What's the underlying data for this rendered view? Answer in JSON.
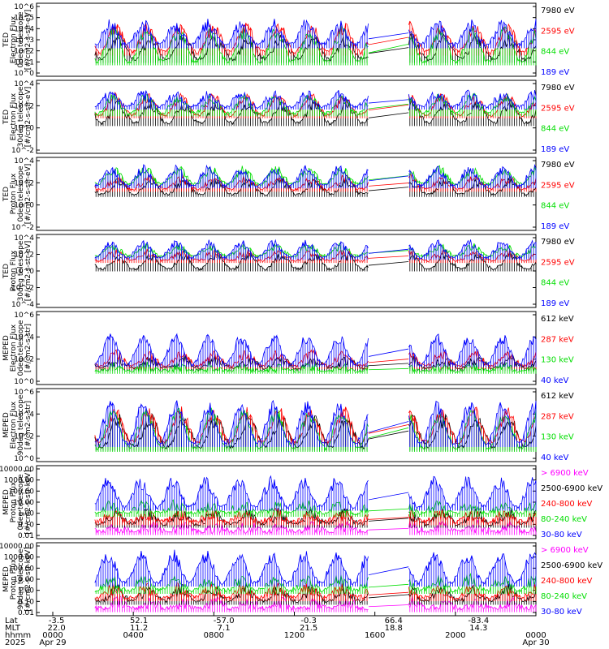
{
  "chart_data": {
    "type": "line",
    "panels": [
      {
        "ylabel": [
          "TED",
          "Electron Flux",
          "0deg telescope",
          "[#/cm2-s-str-eV]"
        ],
        "yticks": [
          "10^6",
          "10^5",
          "10^4",
          "10^3",
          "10^2",
          "10^1",
          "10^0"
        ],
        "log": [
          0,
          6
        ],
        "series": [
          {
            "name": "7980 eV",
            "color": "#000000",
            "base": 1.4,
            "amp": 1.6
          },
          {
            "name": "2595 eV",
            "color": "#ff0000",
            "base": 2.0,
            "amp": 2.0
          },
          {
            "name": "844 eV",
            "color": "#00dd00",
            "base": 1.2,
            "amp": 2.4
          },
          {
            "name": "189 eV",
            "color": "#0000ff",
            "base": 2.6,
            "amp": 1.6
          }
        ]
      },
      {
        "ylabel": [
          "TED",
          "Electron Flux",
          "30deg telescope",
          "[#/cm2-s-str-eV]"
        ],
        "yticks": [
          "10^4",
          "10^2",
          "10^0",
          "10^-2"
        ],
        "log": [
          -2.5,
          5
        ],
        "series": [
          {
            "name": "7980 eV",
            "color": "#000000",
            "base": 0.6,
            "amp": 1.8
          },
          {
            "name": "2595 eV",
            "color": "#ff0000",
            "base": 1.4,
            "amp": 1.8
          },
          {
            "name": "844 eV",
            "color": "#00dd00",
            "base": 1.6,
            "amp": 1.6
          },
          {
            "name": "189 eV",
            "color": "#0000ff",
            "base": 2.3,
            "amp": 1.2
          }
        ]
      },
      {
        "ylabel": [
          "TED",
          "Proton Flux",
          "0deg telescope",
          "[#/cm2-s-str-eV]"
        ],
        "yticks": [
          "10^4",
          "10^2",
          "10^0",
          "10^-2"
        ],
        "log": [
          -3,
          5.5
        ],
        "series": [
          {
            "name": "7980 eV",
            "color": "#000000",
            "base": 1.2,
            "amp": 1.4
          },
          {
            "name": "2595 eV",
            "color": "#ff0000",
            "base": 1.8,
            "amp": 1.2
          },
          {
            "name": "844 eV",
            "color": "#00dd00",
            "base": 2.4,
            "amp": 1.6
          },
          {
            "name": "189 eV",
            "color": "#0000ff",
            "base": 2.2,
            "amp": 1.9
          }
        ]
      },
      {
        "ylabel": [
          "TED",
          "Proton Flux",
          "30deg telescope",
          "[#/cm2-s-str-eV]"
        ],
        "yticks": [
          "10^4",
          "10^2",
          "10^0",
          "10^-2",
          "10^-4"
        ],
        "log": [
          -4.5,
          5
        ],
        "series": [
          {
            "name": "7980 eV",
            "color": "#000000",
            "base": 0.5,
            "amp": 1.6
          },
          {
            "name": "2595 eV",
            "color": "#ff0000",
            "base": 1.6,
            "amp": 1.0
          },
          {
            "name": "844 eV",
            "color": "#00dd00",
            "base": 2.2,
            "amp": 1.2
          },
          {
            "name": "189 eV",
            "color": "#0000ff",
            "base": 2.0,
            "amp": 1.8
          }
        ]
      },
      {
        "ylabel": [
          "MEPED",
          "Electron Flux",
          "0deg telescope",
          "[#/cm2-s-str]"
        ],
        "yticks": [
          "10^6",
          "10^4",
          "10^2",
          "10^0"
        ],
        "log": [
          -0.5,
          7
        ],
        "series": [
          {
            "name": "612 keV",
            "color": "#000000",
            "base": 1.2,
            "amp": 0.8
          },
          {
            "name": "287 keV",
            "color": "#ff0000",
            "base": 1.4,
            "amp": 1.2
          },
          {
            "name": "130 keV",
            "color": "#00dd00",
            "base": 0.9,
            "amp": 0.4
          },
          {
            "name": "40 keV",
            "color": "#0000ff",
            "base": 1.6,
            "amp": 2.6
          }
        ]
      },
      {
        "ylabel": [
          "MEPED",
          "Electron Flux",
          "90deg telescope",
          "[#/cm2-s-str]"
        ],
        "yticks": [
          "10^6",
          "10^4",
          "10^2",
          "10^0"
        ],
        "log": [
          1,
          7
        ],
        "series": [
          {
            "name": "612 keV",
            "color": "#000000",
            "base": 2.2,
            "amp": 2.2
          },
          {
            "name": "287 keV",
            "color": "#ff0000",
            "base": 2.6,
            "amp": 2.4
          },
          {
            "name": "130 keV",
            "color": "#00dd00",
            "base": 2.1,
            "amp": 2.8
          },
          {
            "name": "40 keV",
            "color": "#0000ff",
            "base": 2.5,
            "amp": 3.0
          }
        ]
      },
      {
        "ylabel": [
          "MEPED",
          "Proton Flux",
          "0deg telescope",
          "[#/cm2-s-str-keV]"
        ],
        "yticks": [
          "10000.00",
          "1000.00",
          "100.00",
          "10.00",
          "1.00",
          "0.10",
          "0.01"
        ],
        "log": [
          -2,
          4
        ],
        "series": [
          {
            "name": "> 6900 keV",
            "color": "#ff00ff",
            "base": -1.4,
            "amp": 0.4
          },
          {
            "name": "2500-6900 keV",
            "color": "#000000",
            "base": -0.8,
            "amp": 0.8
          },
          {
            "name": "240-800 keV",
            "color": "#ff0000",
            "base": -0.6,
            "amp": 0.6
          },
          {
            "name": "80-240 keV",
            "color": "#00dd00",
            "base": 0.1,
            "amp": 0.6
          },
          {
            "name": "30-80 keV",
            "color": "#0000ff",
            "base": 0.6,
            "amp": 2.0
          }
        ]
      },
      {
        "ylabel": [
          "MEPED",
          "Proton Flux",
          "90deg telescope",
          "[#/cm2-s-str-keV]"
        ],
        "yticks": [
          "10000.00",
          "1000.00",
          "100.00",
          "10.00",
          "1.00",
          "0.10",
          "0.01"
        ],
        "log": [
          -2,
          4
        ],
        "series": [
          {
            "name": "> 6900 keV",
            "color": "#ff00ff",
            "base": -1.4,
            "amp": 0.5
          },
          {
            "name": "2500-6900 keV",
            "color": "#000000",
            "base": -0.8,
            "amp": 0.9
          },
          {
            "name": "240-800 keV",
            "color": "#ff0000",
            "base": -0.5,
            "amp": 0.7
          },
          {
            "name": "80-240 keV",
            "color": "#00dd00",
            "base": 0.1,
            "amp": 0.8
          },
          {
            "name": "30-80 keV",
            "color": "#0000ff",
            "base": 0.7,
            "amp": 2.2
          }
        ]
      }
    ],
    "x_axis": {
      "row_labels": [
        "Lat",
        "MLT",
        "hhmm",
        "2025"
      ],
      "lat": [
        "-3.5",
        "52.1",
        "-57.0",
        "-0.3",
        "66.4",
        "-83.4"
      ],
      "mlt": [
        "22.0",
        "11.2",
        "7.1",
        "21.5",
        "18.8",
        "14.3"
      ],
      "hhmm": [
        "0000",
        "0400",
        "0800",
        "1200",
        "1600",
        "2000",
        "0000"
      ],
      "dates": [
        "Apr 29",
        "Apr 30"
      ]
    }
  }
}
